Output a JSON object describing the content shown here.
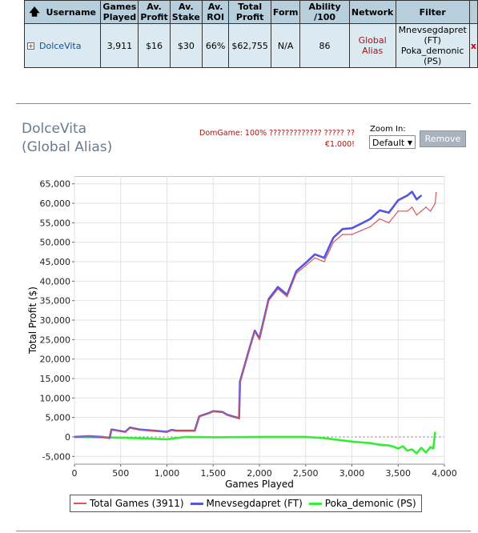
{
  "table": {
    "headers": [
      "Username",
      "Games Played",
      "Av. Profit",
      "Av. Stake",
      "Av. ROI",
      "Total Profit",
      "Form",
      "Ability /100",
      "Network",
      "Filter"
    ],
    "row": {
      "username": "DolceVita",
      "games_played": "3,911",
      "av_profit": "$16",
      "av_stake": "$30",
      "av_roi": "66%",
      "total_profit": "$62,755",
      "form": "N/A",
      "ability": "86",
      "network": "Global Alias",
      "filter": "Mnevsegdapret (FT) Poka_demonic (PS)",
      "remove": "x"
    }
  },
  "profile": {
    "title": "DolceVita",
    "subtitle": "(Global Alias)",
    "note": "DomGame: 100% ????????????? ????? ?? €1.000!",
    "zoom_label": "Zoom In:",
    "zoom_value": "Default",
    "remove_label": "Remove"
  },
  "colors": {
    "total": "#d9585a",
    "ft": "#5555e0",
    "ps": "#33ee33"
  },
  "chart_data": {
    "type": "line",
    "xlabel": "Games Played",
    "ylabel": "Total Profit ($)",
    "xlim": [
      0,
      4000
    ],
    "ylim": [
      -7000,
      67000
    ],
    "xticks": [
      "0",
      "500",
      "1,000",
      "1,500",
      "2,000",
      "2,500",
      "3,000",
      "3,500",
      "4,000"
    ],
    "yticks": [
      "-5,000",
      "0",
      "5,000",
      "10,000",
      "15,000",
      "20,000",
      "25,000",
      "30,000",
      "35,000",
      "40,000",
      "45,000",
      "50,000",
      "55,000",
      "60,000",
      "65,000"
    ],
    "legend": [
      "Total Games (3911)",
      "Mnevsegdapret (FT)",
      "Poka_demonic (PS)"
    ],
    "series": [
      {
        "name": "Total Games (3911)",
        "x": [
          0,
          150,
          300,
          380,
          400,
          550,
          600,
          700,
          1000,
          1050,
          1100,
          1300,
          1350,
          1450,
          1500,
          1600,
          1650,
          1780,
          1790,
          1850,
          1900,
          1950,
          2000,
          2100,
          2200,
          2300,
          2400,
          2500,
          2600,
          2700,
          2800,
          2900,
          3000,
          3100,
          3200,
          3300,
          3400,
          3500,
          3600,
          3650,
          3700,
          3750,
          3800,
          3850,
          3900,
          3911
        ],
        "y": [
          0,
          200,
          0,
          -300,
          1800,
          1200,
          2300,
          1800,
          1200,
          1700,
          1500,
          1500,
          5200,
          6000,
          6500,
          6300,
          5600,
          4700,
          14000,
          19000,
          23000,
          27000,
          25000,
          35000,
          38000,
          36000,
          42000,
          44000,
          46000,
          45000,
          50000,
          52000,
          52000,
          53000,
          54000,
          56000,
          55000,
          58000,
          58000,
          59000,
          57000,
          58000,
          59000,
          58000,
          60000,
          62755
        ]
      },
      {
        "name": "Mnevsegdapret (FT)",
        "x": [
          0,
          150,
          300,
          380,
          400,
          550,
          600,
          700,
          1000,
          1050,
          1100,
          1300,
          1350,
          1450,
          1500,
          1600,
          1650,
          1780,
          1790,
          1850,
          1900,
          1950,
          2000,
          2100,
          2200,
          2300,
          2400,
          2500,
          2600,
          2700,
          2800,
          2900,
          3000,
          3100,
          3200,
          3300,
          3400,
          3500,
          3600,
          3650,
          3700,
          3750
        ],
        "y": [
          0,
          200,
          0,
          -300,
          1900,
          1300,
          2400,
          1900,
          1300,
          1800,
          1600,
          1600,
          5300,
          6100,
          6600,
          6400,
          5700,
          4800,
          14200,
          19200,
          23300,
          27300,
          25300,
          35400,
          38500,
          36500,
          42600,
          44700,
          46900,
          46000,
          51200,
          53400,
          53600,
          54800,
          56000,
          58200,
          57600,
          60800,
          62000,
          63000,
          61000,
          62000
        ]
      },
      {
        "name": "Poka_demonic (PS)",
        "x": [
          0,
          500,
          800,
          1000,
          1100,
          1200,
          1500,
          2000,
          2500,
          2700,
          2800,
          2900,
          3000,
          3100,
          3200,
          3300,
          3400,
          3450,
          3500,
          3550,
          3600,
          3650,
          3700,
          3750,
          3800,
          3850,
          3880,
          3900
        ],
        "y": [
          0,
          -200,
          -400,
          -600,
          -300,
          0,
          -100,
          0,
          0,
          -300,
          -600,
          -900,
          -1200,
          -1400,
          -1600,
          -2000,
          -2200,
          -2500,
          -3000,
          -2400,
          -3500,
          -3200,
          -4200,
          -2800,
          -4000,
          -2600,
          -3000,
          1200
        ]
      }
    ]
  }
}
